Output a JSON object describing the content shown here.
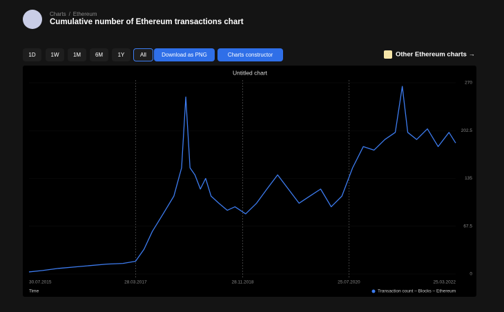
{
  "header": {
    "breadcrumbs": [
      "Charts",
      "Ethereum"
    ],
    "title": "Cumulative number of Ethereum transactions chart"
  },
  "toolbar": {
    "ranges": [
      "1D",
      "1W",
      "1M",
      "6M",
      "1Y",
      "All"
    ],
    "download": "Download as PNG",
    "constructor": "Charts constructor",
    "other": "Other Ethereum charts"
  },
  "chart_data": {
    "type": "line",
    "title": "Untitled chart",
    "xlabel": "Time",
    "x": [
      "2015-07-30",
      "2015-10-15",
      "2016-01-15",
      "2016-04-15",
      "2016-07-15",
      "2016-10-15",
      "2017-01-15",
      "2017-03-28",
      "2017-05-15",
      "2017-07-01",
      "2017-09-01",
      "2017-11-01",
      "2017-12-15",
      "2018-01-08",
      "2018-02-01",
      "2018-03-01",
      "2018-04-01",
      "2018-05-01",
      "2018-06-01",
      "2018-07-15",
      "2018-09-01",
      "2018-10-15",
      "2018-12-15",
      "2019-02-15",
      "2019-04-15",
      "2019-06-15",
      "2019-08-15",
      "2019-10-15",
      "2019-12-15",
      "2020-02-15",
      "2020-04-15",
      "2020-06-15",
      "2020-08-15",
      "2020-10-15",
      "2020-12-15",
      "2021-02-15",
      "2021-04-15",
      "2021-05-25",
      "2021-06-25",
      "2021-08-15",
      "2021-10-15",
      "2021-12-15",
      "2022-02-15",
      "2022-03-25"
    ],
    "series": [
      {
        "name": "Transaction count – Blocks – Ethereum",
        "color": "#3d7cf0",
        "values": [
          3,
          5,
          8,
          10,
          12,
          14,
          15,
          18,
          35,
          60,
          85,
          110,
          150,
          250,
          150,
          140,
          120,
          135,
          110,
          100,
          90,
          95,
          85,
          100,
          120,
          140,
          120,
          100,
          110,
          120,
          95,
          110,
          150,
          180,
          175,
          190,
          200,
          265,
          200,
          190,
          205,
          180,
          200,
          185
        ]
      }
    ],
    "xlim": [
      "2015-07-30",
      "2022-03-25"
    ],
    "xticks": [
      {
        "value": "2015-07-30",
        "label": "30.07.2015"
      },
      {
        "value": "2017-03-28",
        "label": "28.03.2017"
      },
      {
        "value": "2018-11-28",
        "label": "28.11.2018"
      },
      {
        "value": "2020-07-25",
        "label": "25.07.2020"
      },
      {
        "value": "2022-03-25",
        "label": "25.03.2022"
      }
    ],
    "ylim": [
      0,
      270
    ],
    "yticks": [
      0,
      67.5,
      135,
      202.5,
      270
    ],
    "grid": true,
    "legend": "bottom-right"
  }
}
